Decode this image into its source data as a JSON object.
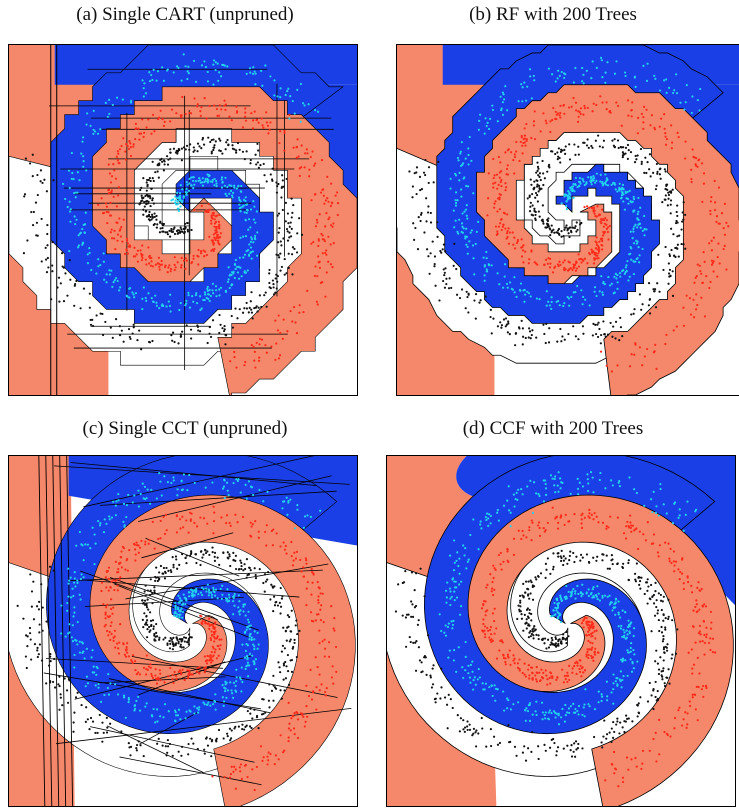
{
  "figure": {
    "panels": [
      {
        "caption": "(a) Single CART (unpruned)",
        "style": "cart"
      },
      {
        "caption": "(b) RF with 200 Trees",
        "style": "rf"
      },
      {
        "caption": "(c) Single CCT (unpruned)",
        "style": "cct"
      },
      {
        "caption": "(d) CCF with 200 Trees",
        "style": "ccf"
      }
    ],
    "classes": [
      {
        "points_color": "#ff2a1a",
        "region_color": "#f5876a"
      },
      {
        "points_color": "#111111",
        "region_color": "#ffffff"
      },
      {
        "points_color": "#22d3f0",
        "region_color": "#1a3fe6"
      }
    ]
  }
}
